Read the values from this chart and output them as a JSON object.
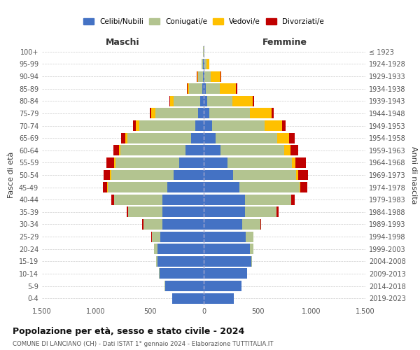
{
  "age_groups": [
    "0-4",
    "5-9",
    "10-14",
    "15-19",
    "20-24",
    "25-29",
    "30-34",
    "35-39",
    "40-44",
    "45-49",
    "50-54",
    "55-59",
    "60-64",
    "65-69",
    "70-74",
    "75-79",
    "80-84",
    "85-89",
    "90-94",
    "95-99",
    "100+"
  ],
  "birth_years": [
    "2019-2023",
    "2014-2018",
    "2009-2013",
    "2004-2008",
    "1999-2003",
    "1994-1998",
    "1989-1993",
    "1984-1988",
    "1979-1983",
    "1974-1978",
    "1969-1973",
    "1964-1968",
    "1959-1963",
    "1954-1958",
    "1949-1953",
    "1944-1948",
    "1939-1943",
    "1934-1938",
    "1929-1933",
    "1924-1928",
    "≤ 1923"
  ],
  "male": {
    "celibi": [
      290,
      360,
      410,
      430,
      430,
      400,
      380,
      380,
      380,
      340,
      280,
      230,
      170,
      120,
      80,
      50,
      30,
      15,
      5,
      4,
      2
    ],
    "coniugati": [
      1,
      2,
      5,
      10,
      30,
      80,
      180,
      320,
      450,
      550,
      580,
      590,
      600,
      590,
      520,
      400,
      250,
      120,
      50,
      15,
      3
    ],
    "vedovi": [
      0,
      0,
      0,
      0,
      0,
      0,
      1,
      2,
      3,
      5,
      8,
      10,
      15,
      20,
      30,
      35,
      30,
      15,
      5,
      2,
      0
    ],
    "divorziati": [
      0,
      0,
      0,
      1,
      2,
      5,
      10,
      15,
      25,
      40,
      60,
      70,
      50,
      35,
      25,
      15,
      5,
      5,
      2,
      0,
      0
    ]
  },
  "female": {
    "nubili": [
      280,
      350,
      400,
      440,
      430,
      390,
      360,
      380,
      380,
      330,
      270,
      220,
      155,
      110,
      75,
      50,
      35,
      20,
      8,
      5,
      2
    ],
    "coniugate": [
      1,
      2,
      5,
      10,
      30,
      70,
      165,
      295,
      430,
      560,
      590,
      600,
      590,
      570,
      490,
      380,
      230,
      130,
      60,
      20,
      3
    ],
    "vedove": [
      0,
      0,
      0,
      0,
      0,
      0,
      1,
      2,
      4,
      8,
      15,
      30,
      60,
      110,
      160,
      200,
      190,
      150,
      90,
      25,
      2
    ],
    "divorziate": [
      0,
      0,
      0,
      1,
      2,
      3,
      5,
      15,
      30,
      65,
      90,
      100,
      70,
      55,
      35,
      20,
      10,
      10,
      3,
      1,
      0
    ]
  },
  "colors": {
    "celibi": "#4472c4",
    "coniugati": "#b3c490",
    "vedovi": "#ffc000",
    "divorziati": "#c00000"
  },
  "title": "Popolazione per età, sesso e stato civile - 2024",
  "subtitle": "COMUNE DI LANCIANO (CH) - Dati ISTAT 1° gennaio 2024 - Elaborazione TUTTITALIA.IT",
  "xlabel_left": "Maschi",
  "xlabel_right": "Femmine",
  "ylabel_left": "Fasce di età",
  "ylabel_right": "Anni di nascita",
  "xlim": 1500,
  "legend_labels": [
    "Celibi/Nubili",
    "Coniugati/e",
    "Vedovi/e",
    "Divorziati/e"
  ],
  "background_color": "#ffffff",
  "grid_color": "#cccccc"
}
